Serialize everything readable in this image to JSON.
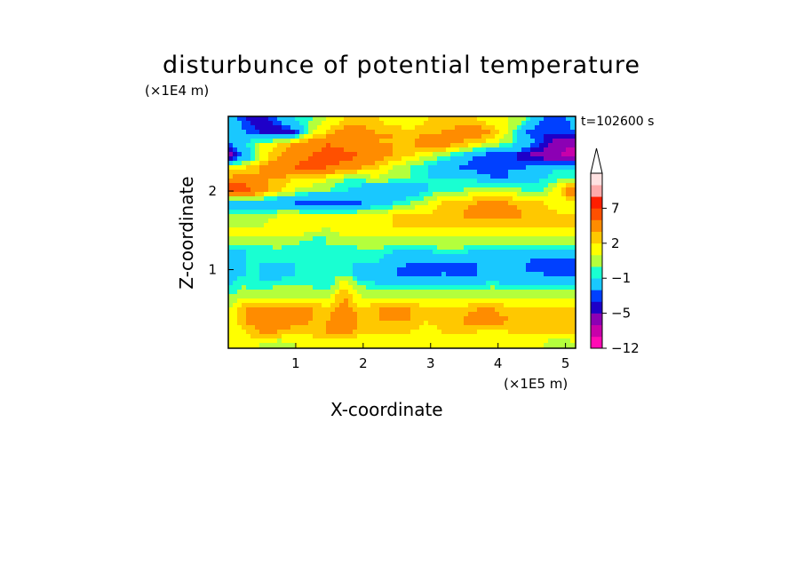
{
  "chart_data": {
    "type": "heatmap",
    "title": "disturbunce of potential temperature",
    "xlabel": "X-coordinate",
    "ylabel": "Z-coordinate",
    "x_unit": "(×1E5 m)",
    "y_unit": "(×1E4 m)",
    "time_label": "t=102600 s",
    "xlim": [
      0,
      5.15
    ],
    "ylim": [
      0,
      2.95
    ],
    "x_ticks": [
      "1",
      "2",
      "3",
      "4",
      "5"
    ],
    "y_ticks": [
      "1",
      "2"
    ],
    "colorbar": {
      "levels": [
        -12,
        -9,
        -7,
        -5,
        -4,
        -3,
        -1,
        0,
        1,
        2,
        3,
        5,
        7,
        9,
        12
      ],
      "tick_labels": [
        "−12",
        "−5",
        "−1",
        "2",
        "7"
      ],
      "tick_values": [
        -12,
        -5,
        -1,
        2,
        7
      ],
      "colors": [
        "#ff0ab4",
        "#c800aa",
        "#8c00b4",
        "#1e00c8",
        "#0040ff",
        "#19c8ff",
        "#19ffd2",
        "#b4ff3c",
        "#ffff00",
        "#ffc800",
        "#ff8c00",
        "#ff5000",
        "#ff1e00",
        "#ffaaaa",
        "#ffe1e1"
      ],
      "extend": "max"
    },
    "field_rows_bottom_to_top": [
      {
        "z": 0.05,
        "values": [
          1,
          1,
          1,
          0,
          1,
          2,
          1,
          1,
          1,
          1,
          1,
          1,
          1,
          1,
          1,
          1,
          1,
          1,
          1,
          1,
          0,
          1
        ]
      },
      {
        "z": 0.2,
        "values": [
          1,
          2,
          3,
          3,
          2,
          2,
          3,
          4,
          2,
          2,
          2,
          2,
          1,
          2,
          2,
          2,
          1,
          2,
          2,
          2,
          2,
          2
        ]
      },
      {
        "z": 0.35,
        "values": [
          1,
          3,
          4,
          4,
          4,
          3,
          3,
          5,
          3,
          3,
          3,
          3,
          2,
          3,
          3,
          4,
          4,
          3,
          3,
          3,
          3,
          3
        ]
      },
      {
        "z": 0.5,
        "values": [
          1,
          3,
          3,
          3,
          3,
          3,
          2,
          4,
          2,
          3,
          3,
          3,
          2,
          2,
          2,
          3,
          3,
          2,
          2,
          2,
          2,
          2
        ]
      },
      {
        "z": 0.65,
        "values": [
          0,
          1,
          1,
          1,
          1,
          1,
          1,
          3,
          1,
          1,
          1,
          1,
          1,
          1,
          1,
          1,
          1,
          1,
          1,
          1,
          1,
          1
        ]
      },
      {
        "z": 0.8,
        "values": [
          -1,
          0,
          -1,
          0,
          0,
          0,
          -1,
          2,
          0,
          -1,
          -1,
          -1,
          -1,
          -1,
          -1,
          -1,
          0,
          -1,
          -1,
          -1,
          -1,
          -1
        ]
      },
      {
        "z": 0.95,
        "values": [
          -2,
          -1,
          -1,
          -2,
          -1,
          -1,
          -1,
          0,
          -2,
          -2,
          -3,
          -4,
          -4,
          -3,
          -4,
          -3,
          -3,
          -3,
          -3,
          -3,
          -4,
          -4
        ]
      },
      {
        "z": 1.1,
        "values": [
          -3,
          -1,
          -1,
          -1,
          -1,
          -1,
          -1,
          -1,
          -1,
          -1,
          -2,
          -3,
          -3,
          -3,
          -3,
          -3,
          -3,
          -3,
          -3,
          -4,
          -4,
          -4
        ]
      },
      {
        "z": 1.25,
        "values": [
          -1,
          -1,
          -1,
          0,
          -1,
          -1,
          0,
          -1,
          0,
          0,
          -1,
          -1,
          -1,
          0,
          0,
          -1,
          -1,
          -1,
          -1,
          -1,
          -1,
          -1
        ]
      },
      {
        "z": 1.4,
        "values": [
          1,
          1,
          1,
          1,
          1,
          0,
          0,
          1,
          1,
          1,
          1,
          1,
          1,
          1,
          1,
          1,
          1,
          1,
          1,
          1,
          1,
          1
        ]
      },
      {
        "z": 1.55,
        "values": [
          1,
          1,
          1,
          2,
          2,
          2,
          1,
          2,
          2,
          2,
          2,
          2,
          2,
          2,
          2,
          2,
          2,
          2,
          2,
          2,
          2,
          2
        ]
      },
      {
        "z": 1.7,
        "values": [
          0,
          0,
          0,
          1,
          1,
          1,
          1,
          1,
          1,
          1,
          2,
          2,
          2,
          3,
          3,
          4,
          4,
          4,
          3,
          3,
          2,
          2
        ]
      },
      {
        "z": 1.85,
        "values": [
          -3,
          -2,
          -2,
          -3,
          -3,
          -4,
          -4,
          -4,
          -3,
          -2,
          -1,
          0,
          1,
          2,
          2,
          3,
          3,
          3,
          2,
          2,
          1,
          1
        ]
      },
      {
        "z": 2.0,
        "values": [
          7,
          6,
          4,
          2,
          1,
          0,
          0,
          -1,
          -2,
          -3,
          -3,
          -2,
          -1,
          0,
          0,
          1,
          1,
          1,
          0,
          0,
          2,
          6
        ]
      },
      {
        "z": 2.15,
        "values": [
          3,
          4,
          3,
          3,
          2,
          2,
          1,
          0,
          0,
          1,
          0,
          0,
          -1,
          -1,
          -1,
          -1,
          -3,
          -3,
          -2,
          -1,
          0,
          0
        ]
      },
      {
        "z": 2.3,
        "values": [
          2,
          2,
          3,
          4,
          5,
          6,
          5,
          4,
          3,
          2,
          1,
          0,
          -1,
          -2,
          -3,
          -4,
          -4,
          -3,
          -3,
          -2,
          -1,
          -1
        ]
      },
      {
        "z": 2.45,
        "values": [
          -7,
          -3,
          1,
          3,
          4,
          5,
          6,
          6,
          5,
          4,
          3,
          2,
          1,
          0,
          -1,
          -3,
          -4,
          -4,
          -5,
          -6,
          -7,
          -8
        ]
      },
      {
        "z": 2.6,
        "values": [
          -3,
          -1,
          1,
          2,
          3,
          4,
          5,
          4,
          4,
          3,
          3,
          3,
          4,
          4,
          3,
          2,
          1,
          0,
          -2,
          -4,
          -6,
          -7
        ]
      },
      {
        "z": 2.75,
        "values": [
          -1,
          -3,
          -4,
          -5,
          -4,
          1,
          2,
          4,
          4,
          3,
          3,
          2,
          3,
          3,
          4,
          4,
          3,
          1,
          -3,
          -4,
          -4,
          -3
        ]
      },
      {
        "z": 2.9,
        "values": [
          -1,
          -4,
          -5,
          -3,
          -1,
          0,
          1,
          2,
          2,
          2,
          1,
          1,
          2,
          2,
          2,
          2,
          1,
          1,
          0,
          -3,
          -4,
          -2
        ]
      }
    ]
  }
}
